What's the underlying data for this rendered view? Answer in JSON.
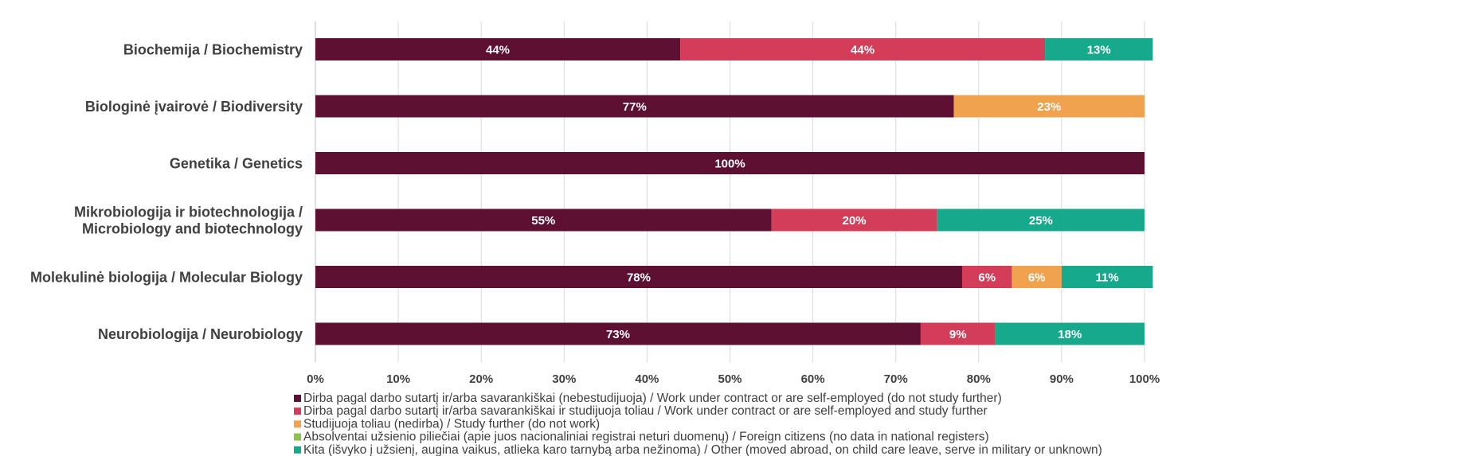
{
  "chart_data": {
    "type": "bar",
    "orientation": "horizontal",
    "stacked": true,
    "percent": true,
    "categories": [
      [
        "Biochemija / Biochemistry"
      ],
      [
        "Biologinė įvairovė / Biodiversity"
      ],
      [
        "Genetika / Genetics"
      ],
      [
        "Mikrobiologija ir biotechnologija /",
        "Microbiology and biotechnology"
      ],
      [
        "Molekulinė biologija / Molecular Biology"
      ],
      [
        "Neurobiologija / Neurobiology"
      ]
    ],
    "series": [
      {
        "name": "Dirba pagal darbo sutartį ir/arba savarankiškai (nebestudijuoja) / Work under contract or are self-employed (do not study further)",
        "color": "#5e1033",
        "values": [
          44,
          77,
          100,
          55,
          78,
          73
        ]
      },
      {
        "name": "Dirba pagal darbo sutartį ir/arba savarankiškai  ir studijuoja toliau / Work under contract or are self-employed and study further",
        "color": "#d43d5a",
        "values": [
          44,
          0,
          0,
          20,
          6,
          9
        ]
      },
      {
        "name": "Studijuoja toliau (nedirba) / Study further (do not work)",
        "color": "#f0a24f",
        "values": [
          0,
          23,
          0,
          0,
          6,
          0
        ]
      },
      {
        "name": "Absolventai užsienio piliečiai (apie juos nacionaliniai registrai neturi duomenų) / Foreign citizens (no data in national registers)",
        "color": "#8bc34a",
        "values": [
          0,
          0,
          0,
          0,
          0,
          0
        ]
      },
      {
        "name": "Kita (išvyko į užsienį, augina vaikus, atlieka karo tarnybą arba nežinoma) / Other (moved abroad, on child care leave, serve in military or unknown)",
        "color": "#17a98c",
        "values": [
          13,
          0,
          0,
          25,
          11,
          18
        ]
      }
    ],
    "data_labels": [
      [
        "44%",
        "",
        "",
        "",
        ""
      ],
      [
        "77%",
        "",
        "",
        "",
        ""
      ],
      [
        "100%",
        "",
        "",
        "",
        ""
      ],
      [
        "55%",
        "",
        "",
        "",
        ""
      ],
      [
        "78%",
        "",
        "",
        "",
        ""
      ],
      [
        "73%",
        "",
        "",
        "",
        ""
      ]
    ],
    "bar_labels": [
      [
        "44%",
        "44%",
        "",
        "",
        "13%"
      ],
      [
        "77%",
        "",
        "23%",
        "",
        ""
      ],
      [
        "100%",
        "",
        "",
        "",
        ""
      ],
      [
        "55%",
        "20%",
        "",
        "",
        "25%"
      ],
      [
        "78%",
        "6%",
        "6%",
        "",
        "11%"
      ],
      [
        "73%",
        "9%",
        "",
        "",
        "18%"
      ]
    ],
    "x_ticks": [
      "0%",
      "10%",
      "20%",
      "30%",
      "40%",
      "50%",
      "60%",
      "70%",
      "80%",
      "90%",
      "100%"
    ],
    "xlim": [
      0,
      100
    ],
    "grid": true,
    "legend_position": "bottom-left",
    "title": "",
    "xlabel": "",
    "ylabel": ""
  }
}
